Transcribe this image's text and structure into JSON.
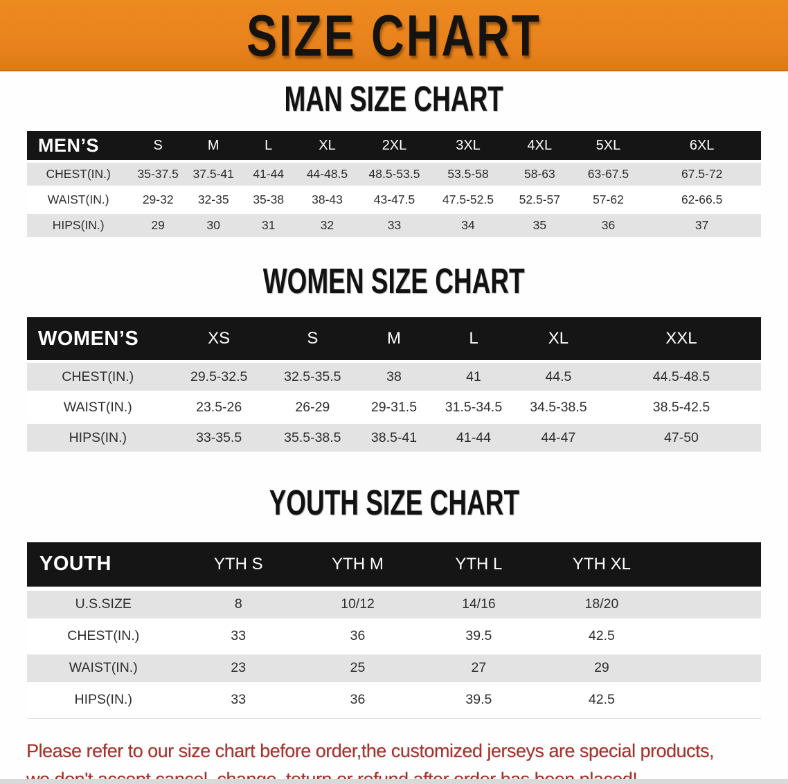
{
  "banner": {
    "title": "SIZE CHART"
  },
  "sections": [
    {
      "heading": "MAN SIZE CHART",
      "table": {
        "id": "men",
        "header_label": "MEN’S",
        "columns": [
          "S",
          "M",
          "L",
          "XL",
          "2XL",
          "3XL",
          "4XL",
          "5XL",
          "6XL"
        ],
        "rows": [
          {
            "label": "CHEST(IN.)",
            "values": [
              "35-37.5",
              "37.5-41",
              "41-44",
              "44-48.5",
              "48.5-53.5",
              "53.5-58",
              "58-63",
              "63-67.5",
              "67.5-72"
            ]
          },
          {
            "label": "WAIST(IN.)",
            "values": [
              "29-32",
              "32-35",
              "35-38",
              "38-43",
              "43-47.5",
              "47.5-52.5",
              "52.5-57",
              "57-62",
              "62-66.5"
            ]
          },
          {
            "label": "HIPS(IN.)",
            "values": [
              "29",
              "30",
              "31",
              "32",
              "33",
              "34",
              "35",
              "36",
              "37"
            ]
          }
        ]
      }
    },
    {
      "heading": "WOMEN SIZE CHART",
      "table": {
        "id": "women",
        "header_label": "WOMEN’S",
        "columns": [
          "XS",
          "S",
          "M",
          "L",
          "XL",
          "XXL"
        ],
        "rows": [
          {
            "label": "CHEST(IN.)",
            "values": [
              "29.5-32.5",
              "32.5-35.5",
              "38",
              "41",
              "44.5",
              "44.5-48.5"
            ]
          },
          {
            "label": "WAIST(IN.)",
            "values": [
              "23.5-26",
              "26-29",
              "29-31.5",
              "31.5-34.5",
              "34.5-38.5",
              "38.5-42.5"
            ]
          },
          {
            "label": "HIPS(IN.)",
            "values": [
              "33-35.5",
              "35.5-38.5",
              "38.5-41",
              "41-44",
              "44-47",
              "47-50"
            ]
          }
        ]
      }
    },
    {
      "heading": "YOUTH SIZE CHART",
      "table": {
        "id": "youth",
        "header_label": "YOUTH",
        "filler": true,
        "columns": [
          "YTH S",
          "YTH M",
          "YTH L",
          "YTH XL"
        ],
        "rows": [
          {
            "label": "U.S.SIZE",
            "values": [
              "8",
              "10/12",
              "14/16",
              "18/20"
            ]
          },
          {
            "label": "CHEST(IN.)",
            "values": [
              "33",
              "36",
              "39.5",
              "42.5"
            ]
          },
          {
            "label": "WAIST(IN.)",
            "values": [
              "23",
              "25",
              "27",
              "29"
            ]
          },
          {
            "label": "HIPS(IN.)",
            "values": [
              "33",
              "36",
              "39.5",
              "42.5"
            ]
          }
        ]
      }
    }
  ],
  "disclaimer": {
    "line1": "Please refer to our size chart before order,the customized jerseys are special products,",
    "line2": "we don't accept cancel, change, teturn or refund after order has been placed!"
  },
  "colors": {
    "banner_bg": "#E8811B",
    "header_bar_bg": "#151515",
    "row_stripe_bg": "#E3E3E3",
    "disclaimer_text": "#A5322C"
  }
}
